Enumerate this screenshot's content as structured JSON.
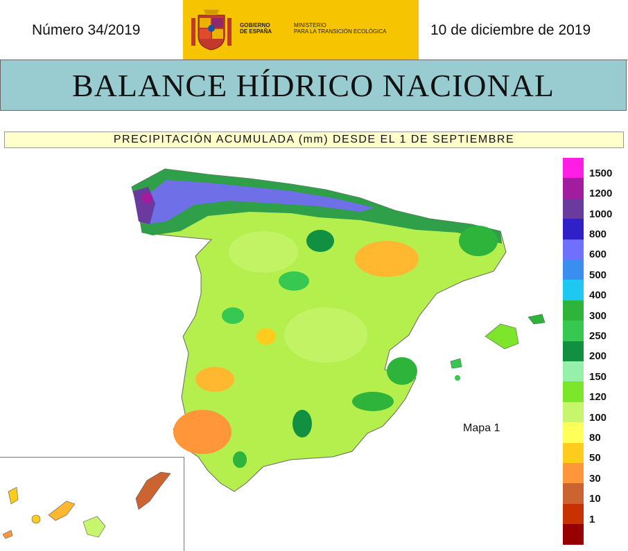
{
  "header": {
    "issue": "Número 34/2019",
    "date": "10 de diciembre de 2019",
    "logo_text_1": "GOBIERNO\nDE ESPAÑA",
    "logo_text_2": "MINISTERIO\nPARA LA TRANSICIÓN ECOLÓGICA",
    "logo_color": "#f6c400"
  },
  "title": "BALANCE HÍDRICO NACIONAL",
  "subtitle": "PRECIPITACIÓN ACUMULADA (mm) DESDE EL 1 DE SEPTIEMBRE",
  "map": {
    "label": "Mapa 1",
    "legend": [
      {
        "label": "1500",
        "color": "#ff1ee6"
      },
      {
        "label": "1200",
        "color": "#a21ca0"
      },
      {
        "label": "1000",
        "color": "#6a3a9e"
      },
      {
        "label": "800",
        "color": "#3020c8"
      },
      {
        "label": "600",
        "color": "#7070ff"
      },
      {
        "label": "500",
        "color": "#3a8ef0"
      },
      {
        "label": "400",
        "color": "#1ec8f0"
      },
      {
        "label": "300",
        "color": "#2eb43a"
      },
      {
        "label": "250",
        "color": "#36c850"
      },
      {
        "label": "200",
        "color": "#109040"
      },
      {
        "label": "150",
        "color": "#96f0aa"
      },
      {
        "label": "120",
        "color": "#7ee62a"
      },
      {
        "label": "100",
        "color": "#c8f56e"
      },
      {
        "label": "80",
        "color": "#ffff5a"
      },
      {
        "label": "50",
        "color": "#ffcc1e"
      },
      {
        "label": "30",
        "color": "#ff963a"
      },
      {
        "label": "10",
        "color": "#cc6432"
      },
      {
        "label": "1",
        "color": "#c83200"
      },
      {
        "label": "",
        "color": "#960000"
      }
    ]
  }
}
